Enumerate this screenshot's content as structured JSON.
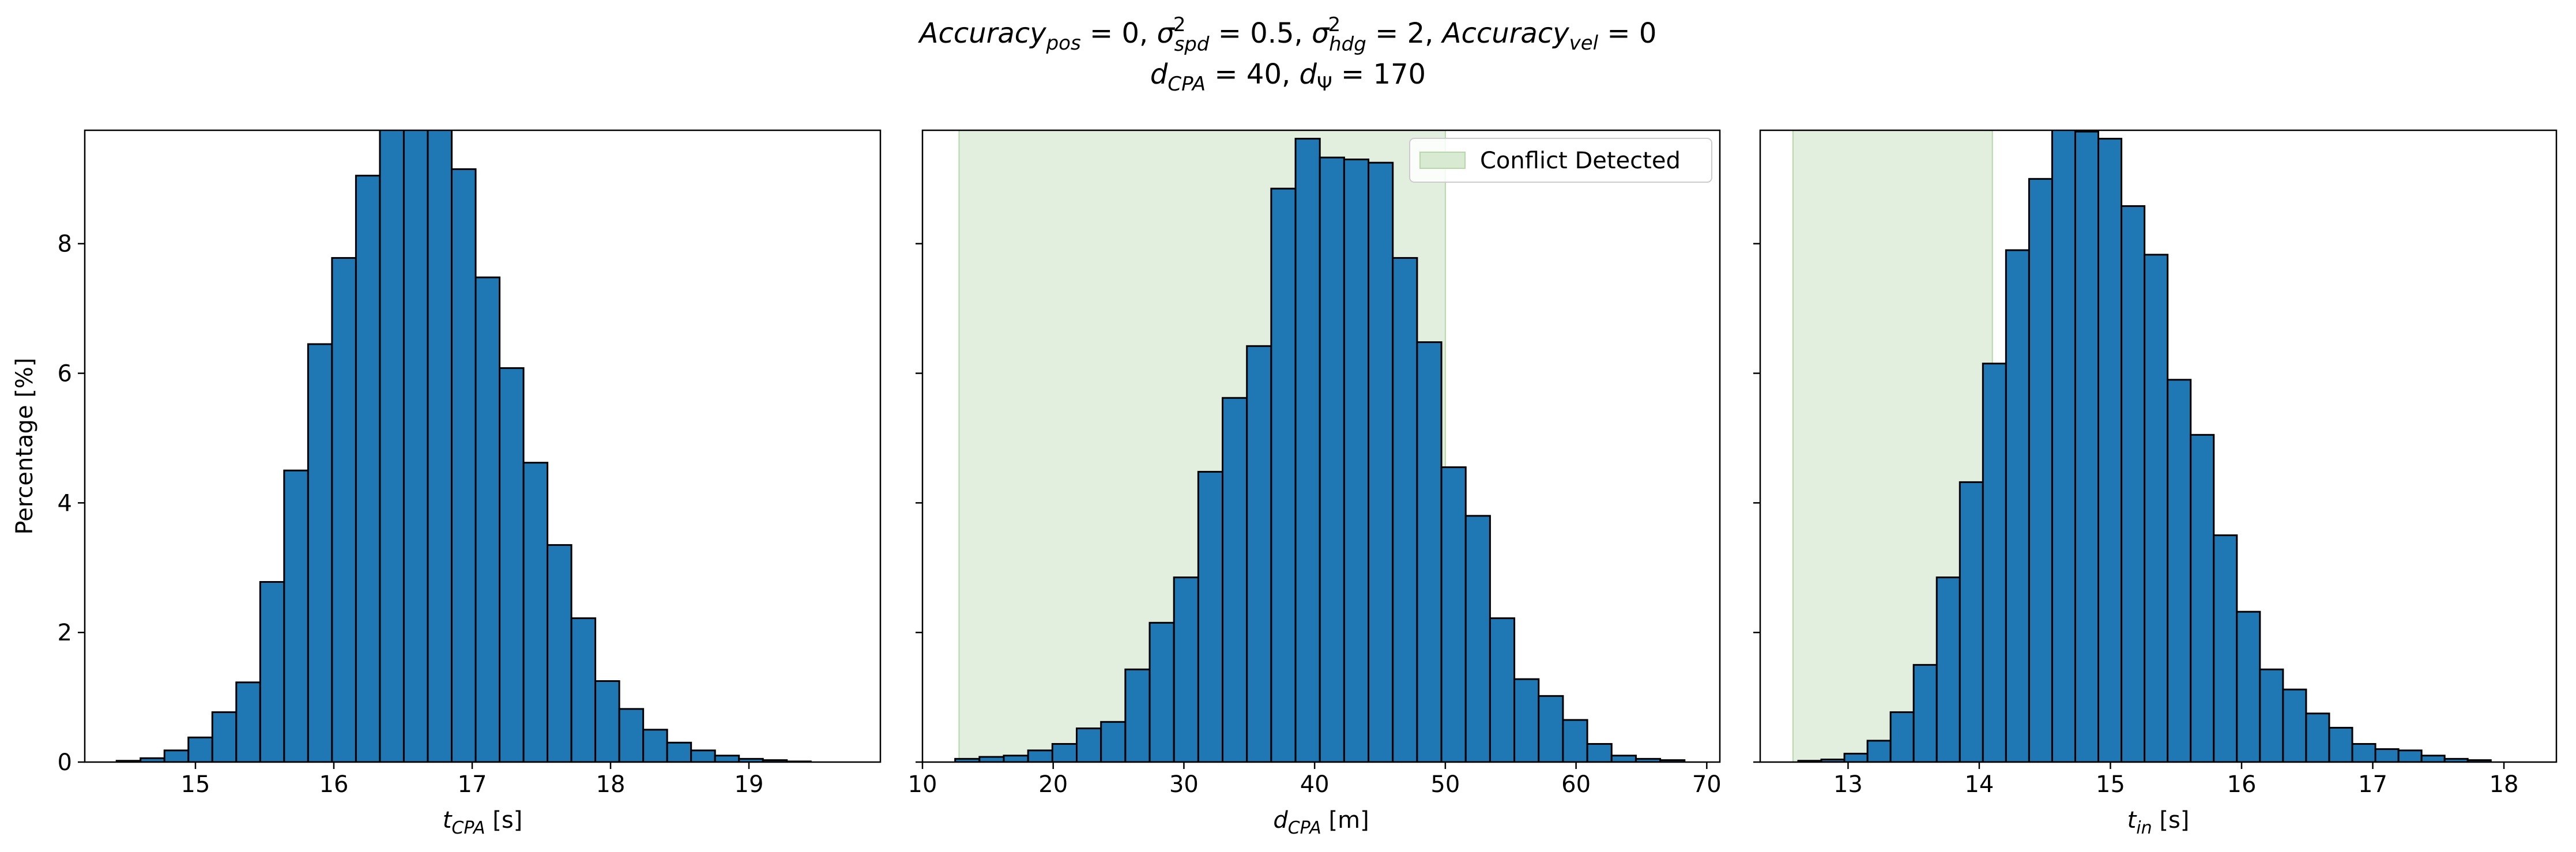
{
  "figure": {
    "title_line1": "Accuracy_pos = 0, σ²_spd = 0.5, σ²_hdg = 2, Accuracy_vel = 0",
    "title_line2": "d_CPA = 40, d_Ψ = 170"
  },
  "colors": {
    "bar_fill": "#1f77b4",
    "bar_edge": "#000000",
    "conflict_region": "#d9ead3"
  },
  "chart_data": [
    {
      "type": "bar",
      "title": "",
      "xlabel": "t_CPA [s]",
      "ylabel": "Percentage [%]",
      "xlim": [
        14.2,
        19.95
      ],
      "ylim": [
        0,
        9.75
      ],
      "xticks": [
        15,
        16,
        17,
        18,
        19
      ],
      "yticks": [
        0,
        2,
        4,
        6,
        8
      ],
      "bin_start": 14.43,
      "bin_width": 0.173,
      "values": [
        0.02,
        0.06,
        0.18,
        0.38,
        0.77,
        1.23,
        2.78,
        4.5,
        6.45,
        7.78,
        9.05,
        9.85,
        10.3,
        10.18,
        9.15,
        7.48,
        6.08,
        4.62,
        3.35,
        2.22,
        1.25,
        0.82,
        0.5,
        0.3,
        0.18,
        0.1,
        0.05,
        0.03,
        0.01
      ]
    },
    {
      "type": "bar",
      "title": "",
      "xlabel": "d_CPA [m]",
      "ylabel": "",
      "xlim": [
        10,
        71
      ],
      "ylim": [
        0,
        9.75
      ],
      "xticks": [
        10,
        20,
        30,
        40,
        50,
        60,
        70
      ],
      "yticks": [
        0,
        2,
        4,
        6,
        8
      ],
      "bin_start": 12.5,
      "bin_width": 1.86,
      "values": [
        0.05,
        0.08,
        0.1,
        0.18,
        0.28,
        0.52,
        0.62,
        1.43,
        2.15,
        2.85,
        4.48,
        5.62,
        6.42,
        8.85,
        9.62,
        9.33,
        9.3,
        9.25,
        7.78,
        6.48,
        4.55,
        3.8,
        2.22,
        1.28,
        1.02,
        0.65,
        0.28,
        0.1,
        0.05,
        0.03
      ],
      "shaded_region": {
        "label": "Conflict Detected",
        "x_from": 12.8,
        "x_to": 50
      },
      "legend": {
        "position": "upper right",
        "entries": [
          "Conflict Detected"
        ]
      }
    },
    {
      "type": "bar",
      "title": "",
      "xlabel": "t_in [s]",
      "ylabel": "",
      "xlim": [
        12.33,
        18.4
      ],
      "ylim": [
        0,
        9.75
      ],
      "xticks": [
        13,
        14,
        15,
        16,
        17,
        18
      ],
      "yticks": [
        0,
        2,
        4,
        6,
        8
      ],
      "bin_start": 12.62,
      "bin_width": 0.176,
      "values": [
        0.02,
        0.04,
        0.13,
        0.33,
        0.77,
        1.5,
        2.85,
        4.32,
        6.15,
        7.9,
        9.0,
        9.8,
        9.73,
        9.62,
        8.58,
        7.83,
        5.9,
        5.05,
        3.5,
        2.32,
        1.43,
        1.12,
        0.75,
        0.53,
        0.28,
        0.2,
        0.18,
        0.1,
        0.05,
        0.03
      ],
      "shaded_region": {
        "label": "Conflict Detected",
        "x_from": 12.58,
        "x_to": 14.1
      }
    }
  ]
}
